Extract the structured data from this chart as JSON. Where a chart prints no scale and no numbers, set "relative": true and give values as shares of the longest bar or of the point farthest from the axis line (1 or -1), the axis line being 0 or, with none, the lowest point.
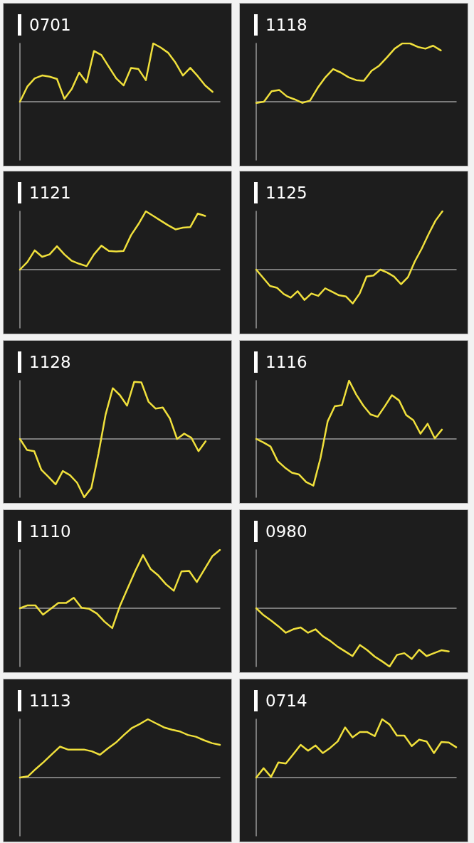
{
  "chart_data": [
    {
      "type": "line",
      "title": "0701",
      "relative": true,
      "color": "#f0e03c",
      "categories": [
        null,
        null,
        null,
        null,
        null,
        null,
        null,
        null,
        null,
        null,
        null,
        null,
        null,
        null,
        null,
        null,
        null,
        null,
        null,
        null,
        null,
        null,
        null,
        null,
        null,
        null,
        null,
        null
      ],
      "values": [
        0,
        0.26,
        0.4,
        0.45,
        0.43,
        0.39,
        0.05,
        0.22,
        0.5,
        0.33,
        0.87,
        0.8,
        0.6,
        0.4,
        0.28,
        0.58,
        0.56,
        0.37,
        1,
        0.93,
        0.84,
        0.67,
        0.45,
        0.58,
        0.44,
        0.28,
        0.17,
        null
      ]
    },
    {
      "type": "line",
      "title": "1118",
      "relative": true,
      "color": "#f0e03c",
      "categories": [
        null,
        null,
        null,
        null,
        null,
        null,
        null,
        null,
        null,
        null,
        null,
        null,
        null,
        null,
        null,
        null,
        null,
        null,
        null,
        null,
        null,
        null,
        null,
        null,
        null,
        null,
        null
      ],
      "values": [
        -0.02,
        0,
        0.18,
        0.2,
        0.09,
        0.04,
        -0.02,
        0.02,
        0.24,
        0.42,
        0.56,
        0.5,
        0.42,
        0.37,
        0.36,
        0.53,
        0.62,
        0.76,
        0.91,
        1,
        1,
        0.94,
        0.91,
        0.96,
        0.88,
        null,
        null
      ]
    },
    {
      "type": "line",
      "title": "1121",
      "relative": true,
      "color": "#f0e03c",
      "categories": [
        null,
        null,
        null,
        null,
        null,
        null,
        null,
        null,
        null,
        null,
        null,
        null,
        null,
        null,
        null,
        null,
        null,
        null,
        null,
        null,
        null,
        null,
        null,
        null,
        null,
        null,
        null,
        null
      ],
      "values": [
        0,
        0.13,
        0.33,
        0.22,
        0.26,
        0.4,
        0.26,
        0.15,
        0.1,
        0.06,
        0.26,
        0.41,
        0.32,
        0.31,
        0.32,
        0.59,
        0.78,
        1,
        0.92,
        0.84,
        0.76,
        0.69,
        0.72,
        0.73,
        0.96,
        0.92,
        null,
        null
      ]
    },
    {
      "type": "line",
      "title": "1125",
      "relative": true,
      "color": "#f0e03c",
      "categories": [
        null,
        null,
        null,
        null,
        null,
        null,
        null,
        null,
        null,
        null,
        null,
        null,
        null,
        null,
        null,
        null,
        null,
        null,
        null,
        null,
        null,
        null,
        null,
        null,
        null,
        null,
        null,
        null,
        null,
        null
      ],
      "values": [
        0,
        -0.14,
        -0.28,
        -0.31,
        -0.42,
        -0.48,
        -0.37,
        -0.52,
        -0.41,
        -0.45,
        -0.32,
        -0.38,
        -0.44,
        -0.46,
        -0.58,
        -0.41,
        -0.12,
        -0.1,
        0,
        -0.05,
        -0.12,
        -0.25,
        -0.13,
        0.14,
        0.36,
        0.61,
        0.84,
        1,
        null,
        null
      ]
    },
    {
      "type": "line",
      "title": "1128",
      "relative": true,
      "color": "#f0e03c",
      "categories": [
        null,
        null,
        null,
        null,
        null,
        null,
        null,
        null,
        null,
        null,
        null,
        null,
        null,
        null,
        null,
        null,
        null,
        null,
        null,
        null,
        null,
        null,
        null,
        null,
        null,
        null,
        null,
        null,
        null
      ],
      "values": [
        0,
        -0.19,
        -0.21,
        -0.53,
        -0.65,
        -0.78,
        -0.55,
        -0.62,
        -0.75,
        -1,
        -0.84,
        -0.25,
        0.42,
        0.87,
        0.75,
        0.57,
        0.98,
        0.97,
        0.64,
        0.52,
        0.54,
        0.35,
        0,
        0.09,
        0.02,
        -0.21,
        -0.04,
        null,
        null
      ]
    },
    {
      "type": "line",
      "title": "1116",
      "relative": true,
      "color": "#f0e03c",
      "categories": [
        null,
        null,
        null,
        null,
        null,
        null,
        null,
        null,
        null,
        null,
        null,
        null,
        null,
        null,
        null,
        null,
        null,
        null,
        null,
        null,
        null,
        null,
        null,
        null,
        null,
        null,
        null,
        null,
        null
      ],
      "values": [
        0,
        -0.06,
        -0.13,
        -0.38,
        -0.49,
        -0.58,
        -0.61,
        -0.74,
        -0.8,
        -0.33,
        0.3,
        0.56,
        0.58,
        1,
        0.76,
        0.57,
        0.42,
        0.38,
        0.56,
        0.75,
        0.66,
        0.41,
        0.32,
        0.09,
        0.26,
        0.01,
        0.16,
        null,
        null
      ]
    },
    {
      "type": "line",
      "title": "1110",
      "relative": true,
      "color": "#f0e03c",
      "categories": [
        null,
        null,
        null,
        null,
        null,
        null,
        null,
        null,
        null,
        null,
        null,
        null,
        null,
        null,
        null,
        null,
        null,
        null,
        null,
        null,
        null,
        null,
        null,
        null,
        null,
        null,
        null
      ],
      "values": [
        0,
        0.05,
        0.05,
        -0.11,
        -0.01,
        0.09,
        0.09,
        0.18,
        0.01,
        -0.01,
        -0.09,
        -0.23,
        -0.34,
        0.04,
        0.34,
        0.64,
        0.91,
        0.67,
        0.56,
        0.41,
        0.3,
        0.63,
        0.64,
        0.45,
        0.67,
        0.89,
        1
      ]
    },
    {
      "type": "line",
      "title": "0980",
      "relative": true,
      "color": "#f0e03c",
      "categories": [
        null,
        null,
        null,
        null,
        null,
        null,
        null,
        null,
        null,
        null,
        null,
        null,
        null,
        null,
        null,
        null,
        null,
        null,
        null,
        null,
        null,
        null,
        null,
        null,
        null,
        null,
        null,
        null
      ],
      "values": [
        0,
        -0.12,
        -0.21,
        -0.31,
        -0.42,
        -0.36,
        -0.33,
        -0.42,
        -0.36,
        -0.48,
        -0.56,
        -0.66,
        -0.74,
        -0.82,
        -0.63,
        -0.72,
        -0.83,
        -0.91,
        -1,
        -0.8,
        -0.77,
        -0.87,
        -0.71,
        -0.82,
        -0.77,
        -0.72,
        -0.74,
        null
      ]
    },
    {
      "type": "line",
      "title": "1113",
      "relative": true,
      "color": "#f0e03c",
      "categories": [
        null,
        null,
        null,
        null,
        null,
        null,
        null,
        null,
        null,
        null,
        null,
        null,
        null,
        null,
        null,
        null,
        null,
        null,
        null,
        null,
        null,
        null,
        null,
        null,
        null,
        null
      ],
      "values": [
        0,
        0.02,
        0.15,
        0.27,
        0.4,
        0.53,
        0.48,
        0.48,
        0.48,
        0.45,
        0.39,
        0.5,
        0.6,
        0.73,
        0.85,
        0.92,
        1,
        0.93,
        0.86,
        0.82,
        0.79,
        0.73,
        0.7,
        0.64,
        0.59,
        0.56
      ]
    },
    {
      "type": "line",
      "title": "0714",
      "relative": true,
      "color": "#f0e03c",
      "categories": [
        null,
        null,
        null,
        null,
        null,
        null,
        null,
        null,
        null,
        null,
        null,
        null,
        null,
        null,
        null,
        null,
        null,
        null,
        null,
        null,
        null,
        null,
        null,
        null,
        null,
        null,
        null,
        null
      ],
      "values": [
        0,
        0.16,
        0.01,
        0.26,
        0.24,
        0.4,
        0.56,
        0.46,
        0.55,
        0.42,
        0.51,
        0.62,
        0.86,
        0.69,
        0.78,
        0.78,
        0.71,
        1,
        0.91,
        0.72,
        0.72,
        0.54,
        0.65,
        0.62,
        0.42,
        0.61,
        0.6,
        0.52
      ]
    }
  ]
}
